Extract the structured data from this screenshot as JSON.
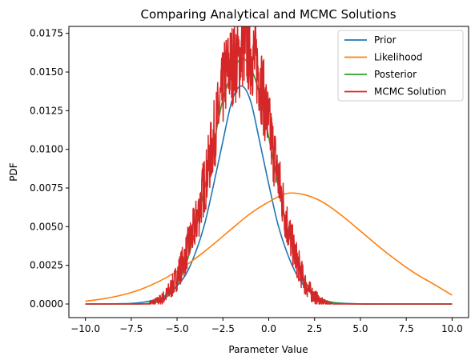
{
  "chart_data": {
    "type": "line",
    "title": "Comparing Analytical and MCMC Solutions",
    "xlabel": "Parameter Value",
    "ylabel": "PDF",
    "xlim": [
      -10.9,
      10.9
    ],
    "ylim": [
      -0.00088,
      0.01795
    ],
    "xticks": [
      -10.0,
      -7.5,
      -5.0,
      -2.5,
      0.0,
      2.5,
      5.0,
      7.5,
      10.0
    ],
    "xtick_labels": [
      "−10.0",
      "−7.5",
      "−5.0",
      "−2.5",
      "0.0",
      "2.5",
      "5.0",
      "7.5",
      "10.0"
    ],
    "yticks": [
      0.0,
      0.0025,
      0.005,
      0.0075,
      0.01,
      0.0125,
      0.015,
      0.0175
    ],
    "ytick_labels": [
      "0.0000",
      "0.0025",
      "0.0050",
      "0.0075",
      "0.0100",
      "0.0125",
      "0.0150",
      "0.0175"
    ],
    "grid": false,
    "legend_position": "top-right",
    "series": [
      {
        "name": "Prior",
        "color": "#1f77b4",
        "style": "smooth",
        "x": [
          -10,
          -8,
          -7,
          -6,
          -5.5,
          -5,
          -4.5,
          -4,
          -3.5,
          -3,
          -2.5,
          -2,
          -1.5,
          -1,
          -0.5,
          0,
          0.5,
          1,
          1.5,
          2,
          2.5,
          3,
          3.5,
          4,
          5,
          6,
          8,
          10
        ],
        "y": [
          0.0,
          2e-05,
          9e-05,
          0.00035,
          0.00063,
          0.00116,
          0.00195,
          0.00331,
          0.00516,
          0.00775,
          0.01053,
          0.01316,
          0.0141,
          0.01316,
          0.01053,
          0.00775,
          0.00516,
          0.00331,
          0.00195,
          0.00107,
          0.00054,
          0.00025,
          0.00011,
          5e-05,
          1e-05,
          0.0,
          0.0,
          0.0
        ]
      },
      {
        "name": "Likelihood",
        "color": "#ff7f0e",
        "style": "smooth",
        "x": [
          -10,
          -9,
          -8,
          -7,
          -6,
          -5,
          -4,
          -3,
          -2,
          -1,
          0,
          1,
          2,
          3,
          4,
          5,
          6,
          7,
          8,
          9,
          10
        ],
        "y": [
          0.00018,
          0.00034,
          0.00058,
          0.00094,
          0.00145,
          0.00212,
          0.00294,
          0.00388,
          0.00488,
          0.00585,
          0.0066,
          0.00715,
          0.00705,
          0.00655,
          0.0057,
          0.00472,
          0.00372,
          0.0028,
          0.00197,
          0.00128,
          0.00057
        ]
      },
      {
        "name": "Posterior",
        "color": "#2ca02c",
        "style": "smooth",
        "x": [
          -10,
          -8,
          -7,
          -6.5,
          -6,
          -5.5,
          -5,
          -4.5,
          -4,
          -3.5,
          -3,
          -2.5,
          -2,
          -1.5,
          -1,
          -0.5,
          0,
          0.5,
          1,
          1.5,
          2,
          2.5,
          3,
          3.5,
          4,
          5,
          6,
          8,
          10
        ],
        "y": [
          0.0,
          0.0,
          1e-05,
          5e-05,
          0.00017,
          0.00052,
          0.00124,
          0.00262,
          0.00475,
          0.00752,
          0.0104,
          0.01322,
          0.01493,
          0.01587,
          0.01532,
          0.01357,
          0.01078,
          0.00773,
          0.00499,
          0.00283,
          0.00144,
          0.00063,
          0.00026,
          9e-05,
          3e-05,
          0.0,
          0.0,
          0.0,
          0.0
        ]
      },
      {
        "name": "MCMC Solution",
        "color": "#d62728",
        "style": "noisy",
        "x": [
          -10,
          -6.5,
          -6.2,
          -6.0,
          -5.8,
          -5.6,
          -5.4,
          -5.2,
          -5.0,
          -4.8,
          -4.6,
          -4.4,
          -4.2,
          -4.0,
          -3.8,
          -3.6,
          -3.4,
          -3.2,
          -3.0,
          -2.8,
          -2.6,
          -2.4,
          -2.2,
          -2.0,
          -1.8,
          -1.6,
          -1.4,
          -1.2,
          -1.0,
          -0.8,
          -0.6,
          -0.4,
          -0.2,
          0.0,
          0.2,
          0.4,
          0.6,
          0.8,
          1.0,
          1.2,
          1.4,
          1.6,
          1.8,
          2.0,
          2.2,
          2.4,
          2.6,
          2.8,
          3.0,
          3.2,
          3.5,
          10.0
        ],
        "y": [
          0.0,
          5e-05,
          0.00012,
          0.00022,
          0.00035,
          0.00055,
          0.00088,
          0.00128,
          0.0018,
          0.0024,
          0.0029,
          0.0037,
          0.0044,
          0.0051,
          0.006,
          0.0073,
          0.0082,
          0.0095,
          0.0108,
          0.012,
          0.0132,
          0.0146,
          0.0152,
          0.0155,
          0.0157,
          0.0158,
          0.0168,
          0.0165,
          0.0162,
          0.0159,
          0.0152,
          0.0142,
          0.0128,
          0.0115,
          0.0102,
          0.009,
          0.0076,
          0.0064,
          0.0052,
          0.0042,
          0.0033,
          0.0026,
          0.0019,
          0.0013,
          0.0009,
          0.0006,
          0.0004,
          0.0002,
          0.0001,
          5e-05,
          0.0,
          0.0
        ]
      }
    ]
  }
}
